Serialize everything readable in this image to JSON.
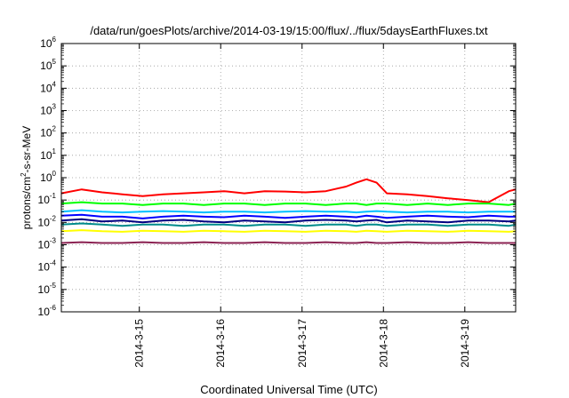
{
  "chart_data": {
    "type": "line",
    "title": "/data/run/goesPlots/archive/2014-03-19/15:00/flux/../flux/5daysEarthFluxes.txt",
    "xlabel": "Coordinated Universal Time (UTC)",
    "ylabel": "protons/cm²-s-sr-MeV",
    "ylabel_parts": {
      "pre": "protons/cm",
      "sup": "2",
      "post": "-s-sr-MeV"
    },
    "yscale": "log",
    "ylim": [
      1e-06,
      1000000.0
    ],
    "ytick_exponents": [
      -6,
      -5,
      -4,
      -3,
      -2,
      -1,
      0,
      1,
      2,
      3,
      4,
      5,
      6
    ],
    "ytick_base": "10",
    "xlim": [
      "2014-03-14T01:00",
      "2014-03-19T15:00"
    ],
    "xtick_labels": [
      "2014-3-15",
      "2014-3-16",
      "2014-3-17",
      "2014-3-18",
      "2014-3-19"
    ],
    "xtick_dates": [
      "2014-03-15",
      "2014-03-16",
      "2014-03-17",
      "2014-03-18",
      "2014-03-19"
    ],
    "grid": true,
    "legend": false,
    "x": [
      "2014-03-14T01:00",
      "2014-03-14T07:00",
      "2014-03-14T13:00",
      "2014-03-14T19:00",
      "2014-03-15T01:00",
      "2014-03-15T07:00",
      "2014-03-15T13:00",
      "2014-03-15T19:00",
      "2014-03-16T01:00",
      "2014-03-16T07:00",
      "2014-03-16T13:00",
      "2014-03-16T19:00",
      "2014-03-17T01:00",
      "2014-03-17T07:00",
      "2014-03-17T13:00",
      "2014-03-17T16:00",
      "2014-03-17T19:00",
      "2014-03-17T22:00",
      "2014-03-18T01:00",
      "2014-03-18T07:00",
      "2014-03-18T13:00",
      "2014-03-18T19:00",
      "2014-03-19T01:00",
      "2014-03-19T07:00",
      "2014-03-19T13:00",
      "2014-03-19T15:00"
    ],
    "series": [
      {
        "color": "#ff0000",
        "values": [
          0.2,
          0.3,
          0.22,
          0.18,
          0.15,
          0.18,
          0.2,
          0.22,
          0.25,
          0.2,
          0.25,
          0.24,
          0.22,
          0.25,
          0.4,
          0.6,
          0.85,
          0.6,
          0.2,
          0.18,
          0.15,
          0.12,
          0.1,
          0.08,
          0.25,
          0.3
        ]
      },
      {
        "color": "#00ff00",
        "values": [
          0.07,
          0.08,
          0.07,
          0.07,
          0.06,
          0.07,
          0.07,
          0.06,
          0.07,
          0.07,
          0.06,
          0.07,
          0.07,
          0.06,
          0.07,
          0.07,
          0.06,
          0.07,
          0.07,
          0.06,
          0.07,
          0.06,
          0.07,
          0.07,
          0.06,
          0.07
        ]
      },
      {
        "color": "#00bfff",
        "values": [
          0.03,
          0.035,
          0.03,
          0.028,
          0.03,
          0.032,
          0.03,
          0.028,
          0.03,
          0.03,
          0.028,
          0.03,
          0.032,
          0.03,
          0.03,
          0.028,
          0.03,
          0.032,
          0.03,
          0.028,
          0.03,
          0.03,
          0.028,
          0.03,
          0.03,
          0.03
        ]
      },
      {
        "color": "#0000ff",
        "values": [
          0.02,
          0.022,
          0.018,
          0.018,
          0.015,
          0.018,
          0.02,
          0.018,
          0.017,
          0.02,
          0.018,
          0.016,
          0.018,
          0.02,
          0.018,
          0.017,
          0.02,
          0.018,
          0.016,
          0.018,
          0.02,
          0.018,
          0.017,
          0.02,
          0.018,
          0.018
        ]
      },
      {
        "color": "#000080",
        "values": [
          0.012,
          0.014,
          0.011,
          0.012,
          0.01,
          0.012,
          0.013,
          0.011,
          0.01,
          0.012,
          0.011,
          0.01,
          0.012,
          0.013,
          0.012,
          0.011,
          0.012,
          0.013,
          0.01,
          0.012,
          0.011,
          0.01,
          0.012,
          0.012,
          0.011,
          0.012
        ]
      },
      {
        "color": "#008b8b",
        "values": [
          0.008,
          0.009,
          0.008,
          0.007,
          0.008,
          0.008,
          0.007,
          0.008,
          0.008,
          0.007,
          0.008,
          0.008,
          0.007,
          0.008,
          0.008,
          0.007,
          0.008,
          0.008,
          0.007,
          0.008,
          0.008,
          0.007,
          0.008,
          0.008,
          0.007,
          0.008
        ]
      },
      {
        "color": "#ffff00",
        "values": [
          0.004,
          0.0045,
          0.004,
          0.0038,
          0.0042,
          0.004,
          0.0038,
          0.0042,
          0.004,
          0.0038,
          0.0042,
          0.004,
          0.0038,
          0.0042,
          0.004,
          0.0038,
          0.0042,
          0.004,
          0.0038,
          0.0042,
          0.004,
          0.0038,
          0.0042,
          0.004,
          0.0038,
          0.004
        ]
      },
      {
        "color": "#8b2252",
        "values": [
          0.0012,
          0.0013,
          0.0012,
          0.0012,
          0.0013,
          0.0012,
          0.0012,
          0.0013,
          0.0012,
          0.0012,
          0.0013,
          0.0012,
          0.0012,
          0.0013,
          0.0012,
          0.0012,
          0.0013,
          0.0012,
          0.0012,
          0.0013,
          0.0012,
          0.0012,
          0.0013,
          0.0012,
          0.0012,
          0.0012
        ]
      }
    ]
  }
}
